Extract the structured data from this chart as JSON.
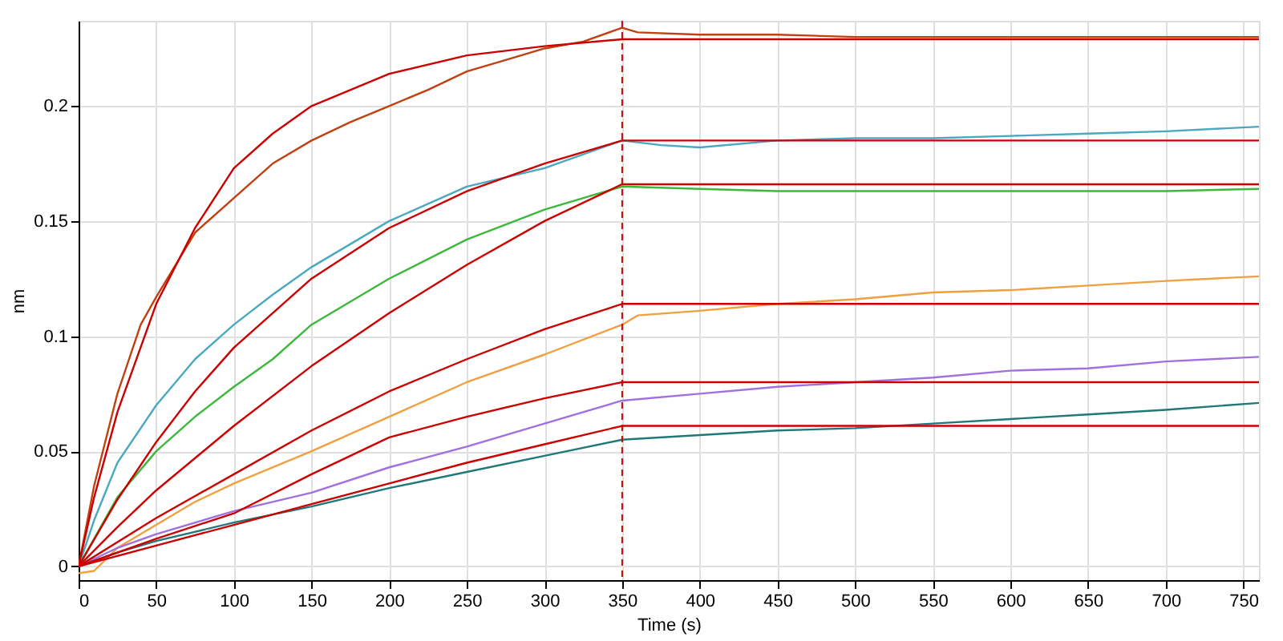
{
  "chart_data": {
    "type": "line",
    "xlabel": "Time (s)",
    "ylabel": "nm",
    "xlim": [
      0,
      760
    ],
    "ylim": [
      -0.006,
      0.237
    ],
    "xticks": [
      0,
      50,
      100,
      150,
      200,
      250,
      300,
      350,
      400,
      450,
      500,
      550,
      600,
      650,
      700,
      750
    ],
    "yticks": [
      0,
      0.05,
      0.1,
      0.15,
      0.2
    ],
    "grid": true,
    "line_style": "solid",
    "marker": "none",
    "ref_lines": [
      {
        "axis": "x",
        "value": 350,
        "color": "#cc0000",
        "line_style": "dashed"
      }
    ],
    "series": [
      {
        "color": "#c04010",
        "x": [
          0,
          10,
          25,
          40,
          50,
          75,
          100,
          125,
          150,
          175,
          200,
          225,
          250,
          275,
          300,
          325,
          350,
          360,
          400,
          450,
          500,
          550,
          600,
          650,
          700,
          760
        ],
        "values": [
          0,
          0.035,
          0.075,
          0.105,
          0.117,
          0.145,
          0.16,
          0.175,
          0.185,
          0.193,
          0.2,
          0.207,
          0.215,
          0.22,
          0.225,
          0.228,
          0.234,
          0.232,
          0.231,
          0.231,
          0.23,
          0.23,
          0.23,
          0.23,
          0.23,
          0.23
        ]
      },
      {
        "color": "#4aa8c0",
        "x": [
          0,
          10,
          25,
          50,
          75,
          100,
          125,
          150,
          200,
          250,
          300,
          350,
          375,
          400,
          450,
          500,
          550,
          600,
          650,
          700,
          760
        ],
        "values": [
          0,
          0.02,
          0.045,
          0.07,
          0.09,
          0.105,
          0.118,
          0.13,
          0.15,
          0.165,
          0.173,
          0.185,
          0.183,
          0.182,
          0.185,
          0.186,
          0.186,
          0.187,
          0.188,
          0.189,
          0.191
        ]
      },
      {
        "color": "#3cb83c",
        "x": [
          0,
          10,
          25,
          50,
          75,
          100,
          125,
          150,
          200,
          250,
          300,
          350,
          400,
          450,
          500,
          550,
          600,
          650,
          700,
          760
        ],
        "values": [
          0,
          0.012,
          0.03,
          0.05,
          0.065,
          0.078,
          0.09,
          0.105,
          0.125,
          0.142,
          0.155,
          0.165,
          0.164,
          0.163,
          0.163,
          0.163,
          0.163,
          0.163,
          0.163,
          0.164
        ]
      },
      {
        "color": "#f0a040",
        "x": [
          0,
          10,
          25,
          50,
          75,
          100,
          150,
          200,
          250,
          300,
          350,
          360,
          400,
          450,
          500,
          550,
          600,
          650,
          700,
          760
        ],
        "values": [
          -0.003,
          -0.002,
          0.008,
          0.018,
          0.028,
          0.036,
          0.05,
          0.065,
          0.08,
          0.092,
          0.105,
          0.109,
          0.111,
          0.114,
          0.116,
          0.119,
          0.12,
          0.122,
          0.124,
          0.126
        ]
      },
      {
        "color": "#a070e0",
        "x": [
          0,
          25,
          50,
          100,
          150,
          200,
          250,
          300,
          350,
          400,
          450,
          500,
          550,
          600,
          650,
          700,
          760
        ],
        "values": [
          0,
          0.008,
          0.014,
          0.024,
          0.032,
          0.043,
          0.052,
          0.062,
          0.072,
          0.075,
          0.078,
          0.08,
          0.082,
          0.085,
          0.086,
          0.089,
          0.091
        ]
      },
      {
        "color": "#207878",
        "x": [
          0,
          25,
          50,
          100,
          150,
          200,
          250,
          300,
          350,
          400,
          450,
          500,
          550,
          600,
          650,
          700,
          760
        ],
        "values": [
          0,
          0.006,
          0.011,
          0.019,
          0.026,
          0.034,
          0.041,
          0.048,
          0.055,
          0.057,
          0.059,
          0.06,
          0.062,
          0.064,
          0.066,
          0.068,
          0.071
        ]
      },
      {
        "color": "#cc0000",
        "x": [
          0,
          10,
          25,
          50,
          75,
          100,
          125,
          150,
          200,
          250,
          300,
          350,
          760
        ],
        "values": [
          0,
          0.03,
          0.067,
          0.114,
          0.147,
          0.173,
          0.188,
          0.2,
          0.214,
          0.222,
          0.226,
          0.229,
          0.229
        ]
      },
      {
        "color": "#cc0000",
        "x": [
          0,
          25,
          50,
          75,
          100,
          150,
          200,
          250,
          300,
          350,
          760
        ],
        "values": [
          0,
          0.029,
          0.054,
          0.076,
          0.095,
          0.125,
          0.147,
          0.163,
          0.175,
          0.185,
          0.185
        ]
      },
      {
        "color": "#cc0000",
        "x": [
          0,
          25,
          50,
          75,
          100,
          150,
          200,
          250,
          300,
          350,
          760
        ],
        "values": [
          0,
          0.017,
          0.033,
          0.047,
          0.061,
          0.087,
          0.11,
          0.131,
          0.15,
          0.166,
          0.166
        ]
      },
      {
        "color": "#cc0000",
        "x": [
          0,
          50,
          100,
          150,
          200,
          250,
          300,
          350,
          760
        ],
        "values": [
          0,
          0.021,
          0.04,
          0.059,
          0.076,
          0.09,
          0.103,
          0.114,
          0.114
        ]
      },
      {
        "color": "#cc0000",
        "x": [
          0,
          50,
          100,
          150,
          200,
          250,
          300,
          350,
          760
        ],
        "values": [
          0,
          0.012,
          0.023,
          0.04,
          0.056,
          0.065,
          0.073,
          0.08,
          0.08
        ]
      },
      {
        "color": "#cc0000",
        "x": [
          0,
          50,
          100,
          150,
          200,
          250,
          300,
          350,
          760
        ],
        "values": [
          0,
          0.009,
          0.018,
          0.027,
          0.036,
          0.045,
          0.053,
          0.061,
          0.061
        ]
      }
    ]
  }
}
